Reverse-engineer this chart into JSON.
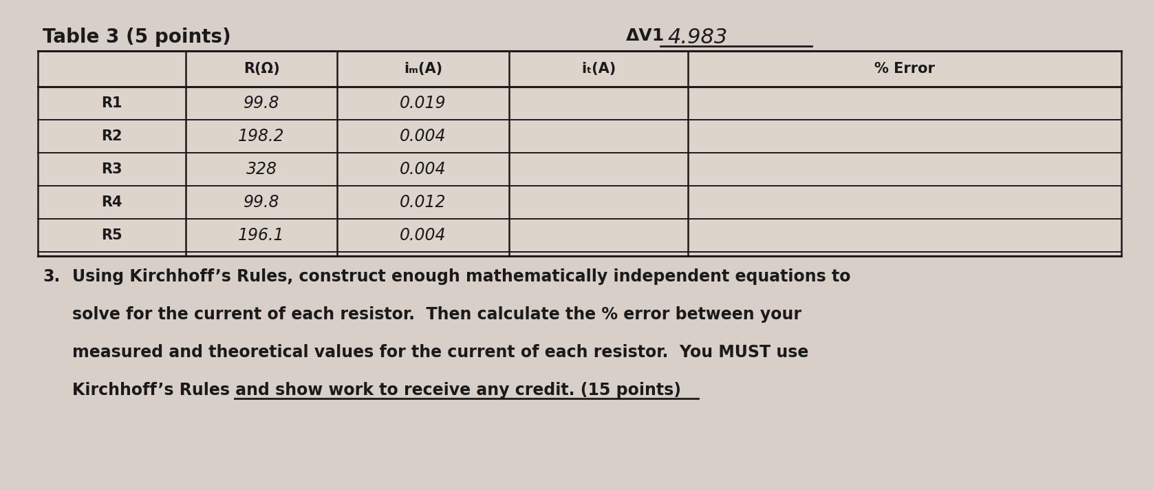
{
  "title": "Table 3 (5 points)",
  "delta_v1_label": "ΔV1",
  "delta_v1_value": "4.983",
  "col_headers": [
    "",
    "R(Ω)",
    "iₘ(A)",
    "iₜ(A)",
    "% Error"
  ],
  "rows": [
    [
      "R1",
      "99.8",
      "0.019",
      "",
      ""
    ],
    [
      "R2",
      "198.2",
      "0.004",
      "",
      ""
    ],
    [
      "R3",
      "328",
      "0.004",
      "",
      ""
    ],
    [
      "R4",
      "99.8",
      "0.012",
      "",
      ""
    ],
    [
      "R5",
      "196.1",
      "0.004",
      "",
      ""
    ]
  ],
  "question_num": "3.",
  "question_text_lines": [
    "Using Kirchhoff’s Rules, construct enough mathematically independent equations to",
    "solve for the current of each resistor.  Then calculate the % error between your",
    "measured and theoretical values for the current of each resistor.  You MUST use",
    "Kirchhoff’s Rules and show work to receive any credit. (15 points)"
  ],
  "bg_color": "#d8cfc8",
  "text_color": "#1a1a1a",
  "figsize": [
    16.76,
    7.12
  ],
  "dpi": 100
}
